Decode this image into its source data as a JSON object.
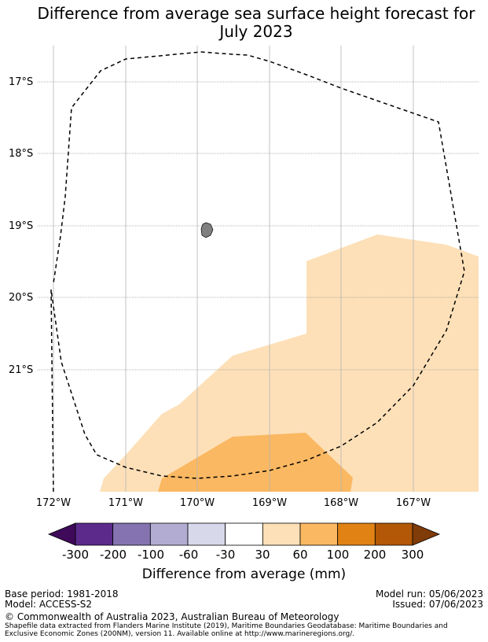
{
  "title": {
    "line1": "Difference from average sea surface height forecast for",
    "line2": "July 2023"
  },
  "map": {
    "lat_labels": [
      "17°S",
      "18°S",
      "19°S",
      "20°S",
      "21°S"
    ],
    "lon_labels": [
      "172°W",
      "171°W",
      "170°W",
      "169°W",
      "168°W",
      "167°W"
    ],
    "colors": {
      "band_30_60": "#fde0b8",
      "band_60_100": "#fbb862",
      "land": "#808080",
      "eez_line": "#000000"
    }
  },
  "colorbar": {
    "ticks": [
      "-300",
      "-200",
      "-100",
      "-60",
      "-30",
      "30",
      "60",
      "100",
      "200",
      "300"
    ],
    "colors": [
      "#3f0a5a",
      "#5b2a8a",
      "#8473b0",
      "#b2acd3",
      "#d8d8eb",
      "#ffffff",
      "#fde0b8",
      "#fbb862",
      "#e08214",
      "#b35806",
      "#7f3b08"
    ],
    "label": "Difference from average (mm)"
  },
  "footer": {
    "base_period": "Base period: 1981-2018",
    "model": "Model: ACCESS-S2",
    "model_run": "Model run: 05/06/2023",
    "issued": "Issued: 07/06/2023",
    "copyright": "© Commonwealth of Australia 2023, Australian Bureau of Meteorology",
    "shapefile_line1": "Shapefile data extracted from Flanders Marine Institute (2019), Maritime Boundaries Geodatabase: Maritime Boundaries and",
    "shapefile_line2": "Exclusive Economic Zones (200NM), version 11. Available online at http://www.marineregions.org/."
  }
}
